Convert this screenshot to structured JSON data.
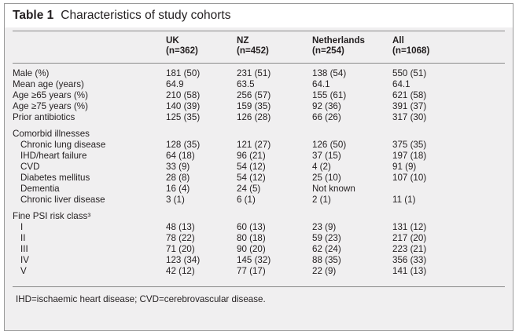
{
  "table": {
    "label": "Table 1",
    "caption": "Characteristics of study cohorts",
    "columns": [
      {
        "name": "UK",
        "n": "(n=362)"
      },
      {
        "name": "NZ",
        "n": "(n=452)"
      },
      {
        "name": "Netherlands",
        "n": "(n=254)"
      },
      {
        "name": "All",
        "n": "(n=1068)"
      }
    ],
    "rows": [
      {
        "label": "Male (%)",
        "values": [
          "181 (50)",
          "231 (51)",
          "138 (54)",
          "550 (51)"
        ]
      },
      {
        "label": "Mean age (years)",
        "values": [
          "64.9",
          "63.5",
          "64.1",
          "64.1"
        ]
      },
      {
        "label": "Age ≥65 years (%)",
        "values": [
          "210 (58)",
          "256 (57)",
          "155 (61)",
          "621 (58)"
        ]
      },
      {
        "label": "Age ≥75 years (%)",
        "values": [
          "140 (39)",
          "159 (35)",
          "92 (36)",
          "391 (37)"
        ]
      },
      {
        "label": "Prior antibiotics",
        "values": [
          "125 (35)",
          "126 (28)",
          "66 (26)",
          "317 (30)"
        ]
      },
      {
        "label": "Comorbid illnesses",
        "values": [
          "",
          "",
          "",
          ""
        ]
      },
      {
        "label": "Chronic lung disease",
        "values": [
          "128 (35)",
          "121 (27)",
          "126 (50)",
          "375 (35)"
        ]
      },
      {
        "label": "IHD/heart failure",
        "values": [
          "64 (18)",
          "96 (21)",
          "37 (15)",
          "197 (18)"
        ]
      },
      {
        "label": "CVD",
        "values": [
          "33 (9)",
          "54 (12)",
          "4 (2)",
          "91 (9)"
        ]
      },
      {
        "label": "Diabetes mellitus",
        "values": [
          "28 (8)",
          "54 (12)",
          "25 (10)",
          "107 (10)"
        ]
      },
      {
        "label": "Dementia",
        "values": [
          "16 (4)",
          "24 (5)",
          "Not known",
          ""
        ]
      },
      {
        "label": "Chronic liver disease",
        "values": [
          "3 (1)",
          "6 (1)",
          "2 (1)",
          "11 (1)"
        ]
      },
      {
        "label": "Fine PSI risk class³",
        "values": [
          "",
          "",
          "",
          ""
        ]
      },
      {
        "label": "I",
        "values": [
          "48 (13)",
          "60 (13)",
          "23 (9)",
          "131 (12)"
        ]
      },
      {
        "label": "II",
        "values": [
          "78 (22)",
          "80 (18)",
          "59 (23)",
          "217 (20)"
        ]
      },
      {
        "label": "III",
        "values": [
          "71 (20)",
          "90 (20)",
          "62 (24)",
          "223 (21)"
        ]
      },
      {
        "label": "IV",
        "values": [
          "123 (34)",
          "145 (32)",
          "88 (35)",
          "356 (33)"
        ]
      },
      {
        "label": "V",
        "values": [
          "42 (12)",
          "77 (17)",
          "22 (9)",
          "141 (13)"
        ]
      }
    ],
    "footnote": "IHD=ischaemic heart disease; CVD=cerebrovascular disease."
  }
}
